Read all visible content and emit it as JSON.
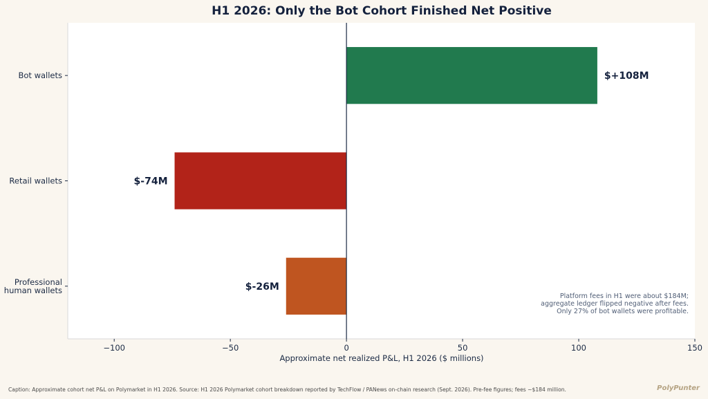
{
  "chart_data": {
    "type": "bar",
    "orientation": "horizontal",
    "title": "H1 2026: Only the Bot Cohort Finished Net Positive",
    "xlabel": "Approximate net realized P&L, H1 2026 ($ millions)",
    "ylabel": "",
    "xlim": [
      -120,
      150
    ],
    "xticks": [
      -100,
      -50,
      0,
      50,
      100,
      150
    ],
    "xtick_labels": [
      "−100",
      "−50",
      "0",
      "50",
      "100",
      "150"
    ],
    "categories": [
      {
        "label_lines": [
          "Bot wallets"
        ]
      },
      {
        "label_lines": [
          "Retail wallets"
        ]
      },
      {
        "label_lines": [
          "Professional",
          "human wallets"
        ]
      }
    ],
    "values": [
      108,
      -74,
      -26
    ],
    "value_labels": [
      "$+108M",
      "$-74M",
      "$-26M"
    ],
    "colors": [
      "#217a4e",
      "#b22319",
      "#bf5520"
    ],
    "grid": false,
    "annotation_lines": [
      "Platform fees in H1 were about $184M;",
      "aggregate ledger flipped negative after fees.",
      "Only 27% of bot wallets were profitable."
    ]
  },
  "footer": {
    "caption": "Caption: Approximate cohort net P&L on Polymarket in H1 2026. Source: H1 2026 Polymarket cohort breakdown reported by TechFlow / PANews on-chain research (Sept. 2026). Pre-fee figures; fees ~$184 million.",
    "brand": "PolyPunter"
  }
}
